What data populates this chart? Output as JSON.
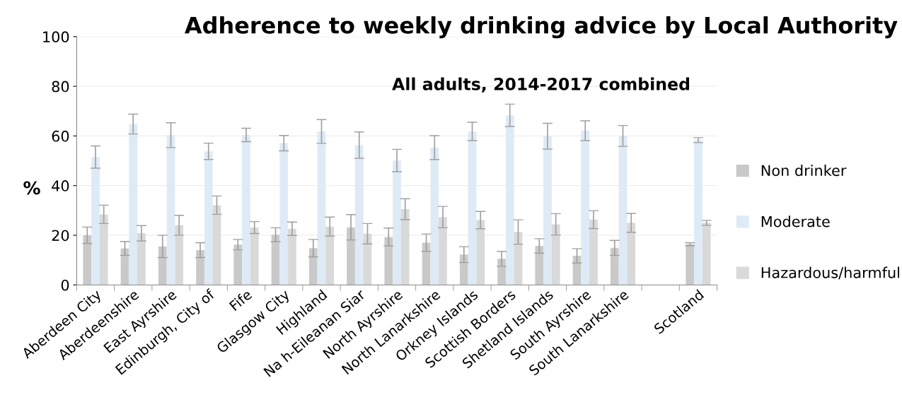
{
  "chart_data": {
    "type": "bar",
    "title": "Adherence to weekly drinking advice by Local Authority",
    "subtitle": "All adults, 2014-2017 combined",
    "ylabel": "%",
    "categories": [
      "Aberdeen City",
      "Aberdeenshire",
      "East Ayrshire",
      "Edinburgh, City of",
      "Fife",
      "Glasgow City",
      "Highland",
      "Na h-Eileanan Siar",
      "North Ayrshire",
      "North Lanarkshire",
      "Orkney Islands",
      "Scottish Borders",
      "Shetland Islands",
      "South Ayrshire",
      "South Lanarkshire",
      null,
      "Scotland"
    ],
    "series": [
      {
        "name": "Non drinker",
        "color": "#c9c9c9",
        "values": [
          20,
          14.7,
          15.5,
          14,
          16.2,
          20.2,
          14.8,
          23.2,
          19.3,
          17,
          12.2,
          10.5,
          15.7,
          11.7,
          14.9,
          null,
          16.4
        ],
        "errors": [
          3.3,
          2.8,
          4.5,
          3,
          2.1,
          2.8,
          3.5,
          5.1,
          3.6,
          3.5,
          3.2,
          3,
          2.9,
          2.9,
          3,
          null,
          0.6
        ]
      },
      {
        "name": "Moderate",
        "color": "#deeaf6",
        "values": [
          51.5,
          64.8,
          60.3,
          53.8,
          60.4,
          57.1,
          61.8,
          56.3,
          50.1,
          55.3,
          61.8,
          68.3,
          59.9,
          62.1,
          60,
          null,
          58.3
        ],
        "errors": [
          4.5,
          4,
          5,
          3.3,
          2.7,
          3.1,
          4.8,
          5.3,
          4.5,
          4.8,
          3.7,
          4.5,
          5.2,
          4,
          4.2,
          null,
          1
        ]
      },
      {
        "name": "Hazardous/harmful",
        "color": "#d9d9d9",
        "values": [
          28.4,
          20.8,
          24,
          32.1,
          23.1,
          22.6,
          23.5,
          20.6,
          30.5,
          27.3,
          26.1,
          21.3,
          24.4,
          26.3,
          25,
          null,
          25
        ],
        "errors": [
          3.7,
          3.1,
          4,
          3.7,
          2.4,
          2.7,
          3.8,
          4.1,
          4.2,
          4.3,
          3.5,
          4.9,
          4.3,
          3.6,
          3.8,
          null,
          1
        ]
      }
    ],
    "ylim": [
      0,
      100
    ],
    "yticks": [
      0,
      20,
      40,
      60,
      80,
      100
    ],
    "grid": "y",
    "legend": "right"
  }
}
